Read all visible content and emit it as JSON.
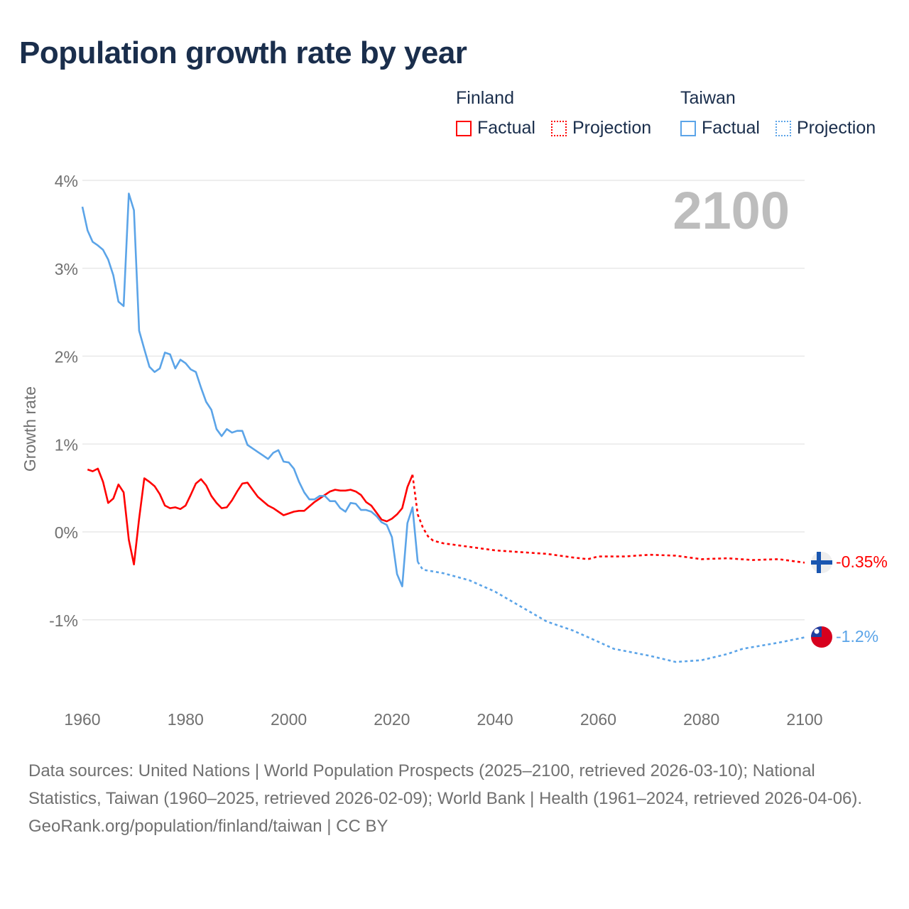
{
  "title": "Population growth rate by year",
  "legend": {
    "groups": [
      {
        "name": "Finland",
        "color": "#ff0000",
        "factual": "Factual",
        "projection": "Projection"
      },
      {
        "name": "Taiwan",
        "color": "#5ba4e8",
        "factual": "Factual",
        "projection": "Projection"
      }
    ]
  },
  "year_display": "2100",
  "footer": {
    "sources": "Data sources: United Nations | World Population Prospects (2025–2100, retrieved 2026-03-10); National Statistics, Taiwan (1960–2025, retrieved 2026-02-09); World Bank | Health (1961–2024, retrieved 2026-04-06).",
    "credit": "GeoRank.org/population/finland/taiwan | CC BY"
  },
  "chart_data": {
    "type": "line",
    "title": "Population growth rate by year",
    "xlabel": "",
    "ylabel": "Growth rate",
    "xlim": [
      1960,
      2100
    ],
    "ylim": [
      -1.9,
      4.0
    ],
    "grid": true,
    "x_ticks": [
      1960,
      1980,
      2000,
      2020,
      2040,
      2060,
      2080,
      2100
    ],
    "x_tick_labels": [
      "1960",
      "1980",
      "2000",
      "2020",
      "2040",
      "2060",
      "2080",
      "2100"
    ],
    "y_ticks": [
      4,
      3,
      2,
      1,
      0,
      -1
    ],
    "y_tick_labels": [
      "4%",
      "3%",
      "2%",
      "1%",
      "0%",
      "-1%"
    ],
    "end_labels": {
      "Finland": "-0.35%",
      "Taiwan": "-1.2%"
    },
    "series": [
      {
        "name": "Finland Factual",
        "color": "#ff0000",
        "dashed": false,
        "start": 1961,
        "values": [
          0.71,
          0.69,
          0.72,
          0.57,
          0.33,
          0.38,
          0.54,
          0.45,
          -0.09,
          -0.37,
          0.15,
          0.61,
          0.57,
          0.52,
          0.43,
          0.3,
          0.27,
          0.28,
          0.26,
          0.3,
          0.42,
          0.55,
          0.6,
          0.53,
          0.41,
          0.33,
          0.27,
          0.28,
          0.36,
          0.46,
          0.55,
          0.56,
          0.48,
          0.4,
          0.35,
          0.3,
          0.27,
          0.23,
          0.19,
          0.21,
          0.23,
          0.24,
          0.24,
          0.29,
          0.34,
          0.38,
          0.42,
          0.46,
          0.48,
          0.47,
          0.47,
          0.48,
          0.46,
          0.42,
          0.34,
          0.3,
          0.22,
          0.14,
          0.12,
          0.15,
          0.2,
          0.27,
          0.51,
          0.65
        ]
      },
      {
        "name": "Finland Projection",
        "color": "#ff0000",
        "dashed": true,
        "points": [
          [
            2024,
            0.65
          ],
          [
            2025,
            0.2
          ],
          [
            2026,
            0.05
          ],
          [
            2027,
            -0.05
          ],
          [
            2028,
            -0.1
          ],
          [
            2030,
            -0.13
          ],
          [
            2035,
            -0.17
          ],
          [
            2040,
            -0.21
          ],
          [
            2045,
            -0.23
          ],
          [
            2050,
            -0.25
          ],
          [
            2055,
            -0.29
          ],
          [
            2058,
            -0.31
          ],
          [
            2060,
            -0.28
          ],
          [
            2065,
            -0.28
          ],
          [
            2070,
            -0.26
          ],
          [
            2075,
            -0.27
          ],
          [
            2080,
            -0.31
          ],
          [
            2085,
            -0.3
          ],
          [
            2090,
            -0.32
          ],
          [
            2095,
            -0.31
          ],
          [
            2100,
            -0.35
          ]
        ]
      },
      {
        "name": "Taiwan Factual",
        "color": "#5ba4e8",
        "dashed": false,
        "start": 1960,
        "values": [
          3.7,
          3.43,
          3.3,
          3.26,
          3.21,
          3.1,
          2.92,
          2.62,
          2.57,
          3.85,
          3.66,
          2.29,
          2.08,
          1.88,
          1.82,
          1.86,
          2.04,
          2.02,
          1.86,
          1.96,
          1.92,
          1.85,
          1.82,
          1.64,
          1.48,
          1.39,
          1.17,
          1.09,
          1.17,
          1.13,
          1.15,
          1.15,
          0.99,
          0.95,
          0.91,
          0.87,
          0.83,
          0.9,
          0.93,
          0.8,
          0.79,
          0.72,
          0.57,
          0.45,
          0.37,
          0.37,
          0.41,
          0.41,
          0.35,
          0.35,
          0.27,
          0.23,
          0.33,
          0.32,
          0.25,
          0.25,
          0.23,
          0.18,
          0.11,
          0.08,
          -0.06,
          -0.48,
          -0.62,
          0.1,
          0.28,
          -0.34
        ]
      },
      {
        "name": "Taiwan Projection",
        "color": "#5ba4e8",
        "dashed": true,
        "points": [
          [
            2025,
            -0.34
          ],
          [
            2026,
            -0.43
          ],
          [
            2030,
            -0.47
          ],
          [
            2035,
            -0.55
          ],
          [
            2040,
            -0.68
          ],
          [
            2045,
            -0.85
          ],
          [
            2050,
            -1.02
          ],
          [
            2055,
            -1.12
          ],
          [
            2060,
            -1.25
          ],
          [
            2063,
            -1.33
          ],
          [
            2070,
            -1.41
          ],
          [
            2075,
            -1.48
          ],
          [
            2080,
            -1.46
          ],
          [
            2085,
            -1.39
          ],
          [
            2088,
            -1.33
          ],
          [
            2095,
            -1.26
          ],
          [
            2100,
            -1.2
          ]
        ]
      }
    ]
  }
}
